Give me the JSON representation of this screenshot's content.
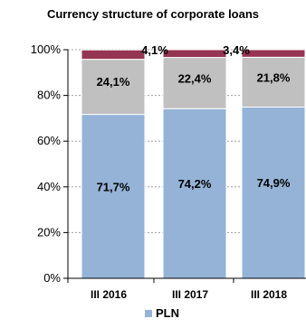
{
  "chart_data": {
    "type": "bar",
    "stacked": true,
    "title": "Currency structure of corporate loans",
    "categories": [
      "III 2016",
      "III 2017",
      "III 2018"
    ],
    "series": [
      {
        "name": "PLN",
        "values": [
          71.7,
          74.2,
          74.9
        ],
        "labels": [
          "71,7%",
          "74,2%",
          "74,9%"
        ],
        "color": "#95b3d7"
      },
      {
        "values": [
          24.1,
          22.4,
          21.8
        ],
        "labels": [
          "24,1%",
          "22,4%",
          "21,8%"
        ],
        "color": "#c0c0c0"
      },
      {
        "values": [
          4.1,
          3.4,
          3.3
        ],
        "labels": [
          "4,1%",
          "3,4%",
          "3,3"
        ],
        "color": "#953553"
      }
    ],
    "yticks": [
      "0%",
      "20%",
      "40%",
      "60%",
      "80%",
      "100%"
    ],
    "ylim": [
      0,
      100
    ],
    "grid": true,
    "legend": "bottom"
  }
}
